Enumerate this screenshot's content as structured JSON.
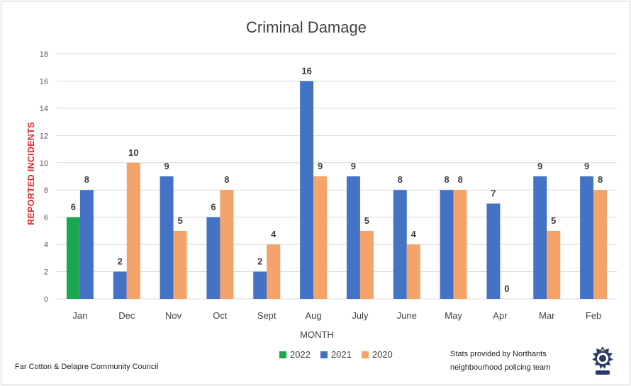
{
  "chart_data": {
    "type": "bar",
    "title": "Criminal Damage",
    "xlabel": "MONTH",
    "ylabel": "REPORTED INCIDENTS",
    "ylim": [
      0,
      18
    ],
    "yticks": [
      0,
      2,
      4,
      6,
      8,
      10,
      12,
      14,
      16,
      18
    ],
    "grid": true,
    "legend_position": "bottom",
    "categories": [
      "Jan",
      "Dec",
      "Nov",
      "Oct",
      "Sept",
      "Aug",
      "July",
      "June",
      "May",
      "Apr",
      "Mar",
      "Feb"
    ],
    "series": [
      {
        "name": "2022",
        "color": "#1aa84f",
        "values": [
          6,
          null,
          null,
          null,
          null,
          null,
          null,
          null,
          null,
          null,
          null,
          null
        ]
      },
      {
        "name": "2021",
        "color": "#4472c4",
        "values": [
          8,
          2,
          9,
          6,
          2,
          16,
          9,
          8,
          8,
          7,
          9,
          9
        ]
      },
      {
        "name": "2020",
        "color": "#f4a46a",
        "values": [
          null,
          10,
          5,
          8,
          4,
          9,
          5,
          4,
          8,
          0,
          5,
          8
        ]
      }
    ]
  },
  "footer": {
    "left": "Far Cotton & Delapre Community Council",
    "right_line1": "Stats provided by Northants",
    "right_line2": "neighbourhood policing team"
  },
  "badge": {
    "icon": "police-crest-icon"
  }
}
